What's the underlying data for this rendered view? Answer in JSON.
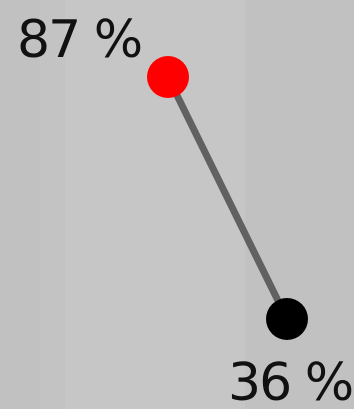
{
  "chart_data": {
    "type": "line",
    "title": "",
    "xlabel": "",
    "ylabel": "",
    "x": [
      "start",
      "end"
    ],
    "values": [
      87,
      36
    ],
    "labels": [
      "87 %",
      "36 %"
    ],
    "point_colors": [
      "#ff0000",
      "#000000"
    ],
    "line_color": "#616161",
    "grid": false,
    "ylim": [
      0,
      100
    ]
  },
  "colors": {
    "background": "#c4c4c4",
    "start_point": "#ff0000",
    "end_point": "#000000",
    "connector": "#616161"
  }
}
